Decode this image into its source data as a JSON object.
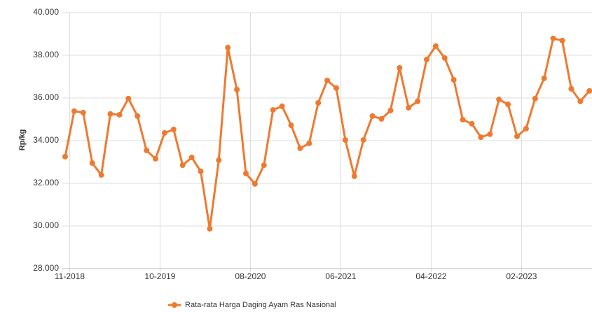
{
  "chart_data": {
    "type": "line",
    "y_label": "Rp/kg",
    "categories": [
      "11-2018",
      null,
      null,
      null,
      null,
      null,
      null,
      null,
      null,
      null,
      "10-2019",
      null,
      null,
      null,
      null,
      null,
      null,
      null,
      null,
      null,
      "08-2020",
      null,
      null,
      null,
      null,
      null,
      null,
      null,
      null,
      null,
      "06-2021",
      null,
      null,
      null,
      null,
      null,
      null,
      null,
      null,
      null,
      "04-2022",
      null,
      null,
      null,
      null,
      null,
      null,
      null,
      null,
      null,
      "02-2023",
      null,
      null,
      null,
      null,
      null,
      null,
      null,
      null
    ],
    "series": [
      {
        "name": "Rata-rata Harga Daging Ayam Ras Nasional",
        "color": "#ee7a30",
        "values": [
          33250,
          35380,
          35310,
          32950,
          32390,
          35250,
          35210,
          35970,
          35150,
          33540,
          33150,
          34360,
          34520,
          32850,
          33210,
          32560,
          29870,
          33080,
          38360,
          36390,
          32460,
          31970,
          32850,
          35440,
          35610,
          34720,
          33640,
          33870,
          35770,
          36820,
          36460,
          34030,
          32330,
          34030,
          35150,
          35020,
          35410,
          37410,
          35540,
          35840,
          37800,
          38430,
          37870,
          36850,
          34980,
          34790,
          34160,
          34300,
          35930,
          35700,
          34200,
          34560,
          35970,
          36920,
          38790,
          38690,
          36430,
          35840,
          36330
        ]
      }
    ],
    "ylim": [
      28000,
      40000
    ],
    "yticks": [
      {
        "value": 28000,
        "label": "28.000"
      },
      {
        "value": 30000,
        "label": "30.000"
      },
      {
        "value": 32000,
        "label": "32.000"
      },
      {
        "value": 34000,
        "label": "34.000"
      },
      {
        "value": 36000,
        "label": "36.000"
      },
      {
        "value": 38000,
        "label": "38.000"
      },
      {
        "value": 40000,
        "label": "40.000"
      }
    ],
    "grid": true,
    "legend": "bottom"
  }
}
